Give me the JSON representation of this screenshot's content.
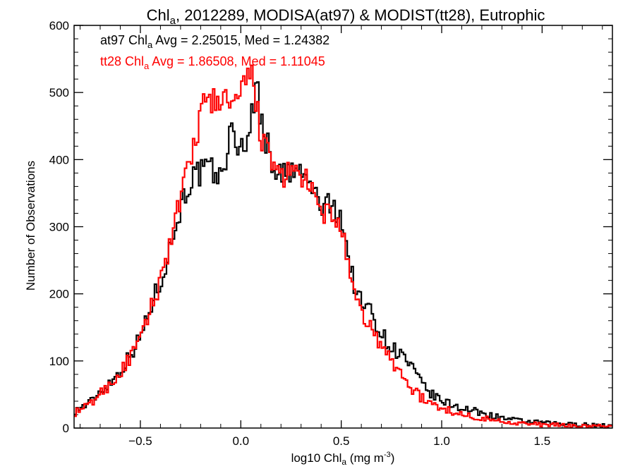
{
  "chart_data": {
    "type": "line",
    "title": {
      "pre": "Chl",
      "sub": "a",
      "post": ", 2012289, MODISA(at97) & MODIST(tt28), Eutrophic"
    },
    "xlabel": {
      "pre": "log10 Chl",
      "sub": "a",
      "mid": " (mg m",
      "sup": "-3",
      "post": ")"
    },
    "ylabel": "Number of Observations",
    "xlim": [
      -0.83,
      1.85
    ],
    "ylim": [
      0,
      600
    ],
    "x_ticks": [
      -0.5,
      0.0,
      0.5,
      1.0,
      1.5
    ],
    "x_tick_labels": [
      "−0.5",
      "0.0",
      "0.5",
      "1.0",
      "1.5"
    ],
    "y_ticks": [
      0,
      100,
      200,
      300,
      400,
      500,
      600
    ],
    "y_tick_labels": [
      "0",
      "100",
      "200",
      "300",
      "400",
      "500",
      "600"
    ],
    "x_minor_step": 0.1,
    "y_minor_step": 20,
    "grid": false,
    "legend_placement": "top-left",
    "series": [
      {
        "name": "at97",
        "color": "#000000",
        "annotation": {
          "pre": "at97 Chl",
          "sub": "a",
          "post": " Avg = 2.25015, Med = 1.24382"
        },
        "x": [
          -0.83,
          -0.75,
          -0.7,
          -0.65,
          -0.6,
          -0.55,
          -0.5,
          -0.45,
          -0.4,
          -0.35,
          -0.3,
          -0.25,
          -0.2,
          -0.15,
          -0.1,
          -0.05,
          0.0,
          0.05,
          0.08,
          0.1,
          0.15,
          0.2,
          0.25,
          0.3,
          0.35,
          0.4,
          0.45,
          0.5,
          0.55,
          0.6,
          0.65,
          0.7,
          0.75,
          0.8,
          0.85,
          0.9,
          0.95,
          1.0,
          1.05,
          1.1,
          1.2,
          1.3,
          1.4,
          1.5,
          1.6,
          1.7,
          1.85
        ],
        "y": [
          25,
          38,
          55,
          68,
          85,
          110,
          135,
          180,
          220,
          270,
          330,
          370,
          380,
          385,
          370,
          440,
          415,
          450,
          520,
          460,
          400,
          375,
          380,
          380,
          360,
          330,
          330,
          320,
          230,
          185,
          175,
          140,
          120,
          110,
          90,
          65,
          50,
          40,
          35,
          30,
          22,
          15,
          10,
          8,
          6,
          5,
          3
        ]
      },
      {
        "name": "tt28",
        "color": "#ff0000",
        "annotation": {
          "pre": "tt28 Chl",
          "sub": "a",
          "post": " Avg = 1.86508, Med = 1.11045"
        },
        "x": [
          -0.83,
          -0.75,
          -0.7,
          -0.65,
          -0.6,
          -0.55,
          -0.5,
          -0.45,
          -0.4,
          -0.35,
          -0.3,
          -0.25,
          -0.2,
          -0.15,
          -0.1,
          -0.05,
          0.0,
          0.05,
          0.08,
          0.1,
          0.15,
          0.2,
          0.25,
          0.3,
          0.35,
          0.4,
          0.45,
          0.5,
          0.55,
          0.6,
          0.65,
          0.7,
          0.75,
          0.8,
          0.85,
          0.9,
          0.95,
          1.0,
          1.05,
          1.1,
          1.2,
          1.3,
          1.4,
          1.5,
          1.6,
          1.7,
          1.85
        ],
        "y": [
          22,
          35,
          52,
          65,
          82,
          105,
          130,
          175,
          220,
          280,
          340,
          395,
          470,
          490,
          490,
          480,
          490,
          530,
          480,
          440,
          390,
          380,
          375,
          380,
          350,
          320,
          320,
          300,
          210,
          170,
          150,
          120,
          100,
          80,
          60,
          45,
          35,
          30,
          25,
          20,
          15,
          10,
          7,
          5,
          4,
          3,
          2
        ]
      }
    ]
  }
}
